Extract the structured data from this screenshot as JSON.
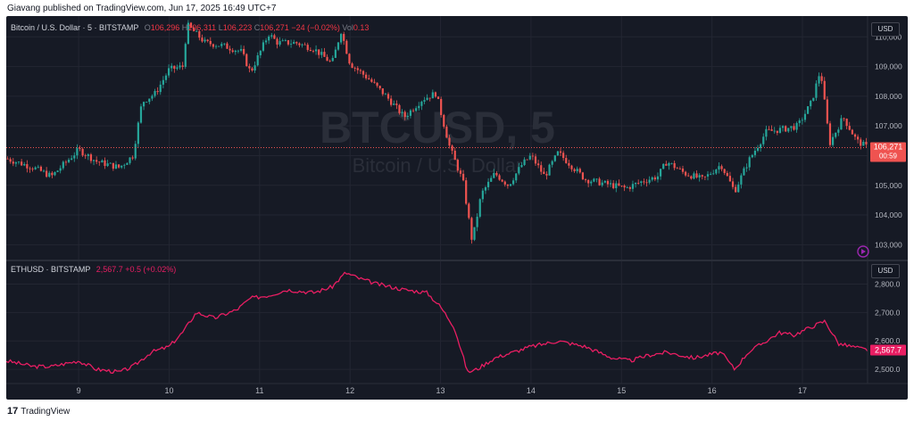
{
  "header": {
    "text": "Giavang published on TradingView.com, Jun 17, 2025 16:49 UTC+7"
  },
  "footer": {
    "logo_text": "17",
    "brand": "TradingView"
  },
  "colors": {
    "background": "#161a25",
    "grid": "#232632",
    "up": "#26a69a",
    "down": "#ef5350",
    "eth_line": "#e91e63",
    "text": "#b2b5be"
  },
  "chart_data": [
    {
      "type": "candlestick",
      "symbol_label": "Bitcoin / U.S. Dollar · 5 · BITSTAMP",
      "ohlc": {
        "o_label": "O",
        "o": "106,296",
        "h_label": "H",
        "h": "106,311",
        "l_label": "L",
        "l": "106,223",
        "c_label": "C",
        "c": "106,271",
        "change": "−24 (−0.02%)",
        "vol_label": "Vol",
        "vol": "0.13"
      },
      "watermark": "BTCUSD, 5",
      "watermark_sub": "Bitcoin / U.S. Dollar",
      "currency": "USD",
      "last_price": "106,271",
      "countdown": "00:59",
      "ylim": [
        102500,
        110700
      ],
      "y_ticks": [
        "103,000",
        "104,000",
        "105,000",
        "106,000",
        "107,000",
        "108,000",
        "109,000",
        "110,000"
      ],
      "x_ticks": [
        "9",
        "10",
        "11",
        "12",
        "13",
        "14",
        "15",
        "16",
        "17"
      ],
      "x_tick_positions": [
        9,
        10,
        11,
        12,
        13,
        14,
        15,
        16,
        17
      ],
      "xlim": [
        8.2,
        17.72
      ],
      "trend_x": [
        8.2,
        8.5,
        8.7,
        8.9,
        9.0,
        9.2,
        9.45,
        9.6,
        9.7,
        9.85,
        10.0,
        10.15,
        10.2,
        10.4,
        10.6,
        10.8,
        10.9,
        11.1,
        11.2,
        11.4,
        11.6,
        11.8,
        11.9,
        12.0,
        12.2,
        12.4,
        12.6,
        12.8,
        12.95,
        13.1,
        13.25,
        13.35,
        13.45,
        13.6,
        13.75,
        13.9,
        14.0,
        14.15,
        14.3,
        14.6,
        14.9,
        15.05,
        15.2,
        15.4,
        15.5,
        15.7,
        15.9,
        16.1,
        16.25,
        16.4,
        16.6,
        16.8,
        16.95,
        17.1,
        17.2,
        17.3,
        17.45,
        17.6,
        17.72
      ],
      "trend_y": [
        105900,
        105600,
        105300,
        105900,
        106200,
        105800,
        105600,
        106000,
        107800,
        108100,
        108900,
        109000,
        110400,
        109800,
        109700,
        109500,
        108800,
        110100,
        109800,
        109800,
        109600,
        109100,
        110200,
        109100,
        108600,
        108000,
        107300,
        107900,
        108100,
        106300,
        105100,
        103100,
        104700,
        105400,
        105000,
        105700,
        106000,
        105300,
        106100,
        105200,
        105000,
        104900,
        105100,
        105300,
        105800,
        105400,
        105200,
        105700,
        104800,
        105800,
        106800,
        106900,
        107000,
        107800,
        108900,
        106400,
        107300,
        106500,
        106270
      ]
    },
    {
      "type": "line",
      "symbol_label": "ETHUSD · BITSTAMP",
      "last_label": "2,567.7",
      "change": "+0.5 (+0.02%)",
      "currency": "USD",
      "last_price": "2,567.7",
      "ylim": [
        2450,
        2880
      ],
      "y_ticks": [
        "2,500.0",
        "2,600.0",
        "2,700.0",
        "2,800.0"
      ],
      "x": [
        8.2,
        8.5,
        8.7,
        9.0,
        9.2,
        9.45,
        9.6,
        9.8,
        10.0,
        10.15,
        10.3,
        10.5,
        10.75,
        10.9,
        11.1,
        11.3,
        11.6,
        11.8,
        11.95,
        12.1,
        12.3,
        12.6,
        12.85,
        13.0,
        13.15,
        13.3,
        13.4,
        13.6,
        13.8,
        14.0,
        14.3,
        14.6,
        14.9,
        15.1,
        15.3,
        15.5,
        15.8,
        16.1,
        16.25,
        16.4,
        16.6,
        16.75,
        16.9,
        17.1,
        17.25,
        17.4,
        17.55,
        17.72
      ],
      "y": [
        2530,
        2510,
        2510,
        2530,
        2500,
        2490,
        2510,
        2560,
        2580,
        2630,
        2700,
        2680,
        2710,
        2750,
        2760,
        2780,
        2770,
        2790,
        2840,
        2820,
        2800,
        2780,
        2770,
        2720,
        2650,
        2490,
        2500,
        2540,
        2560,
        2580,
        2600,
        2580,
        2540,
        2530,
        2550,
        2560,
        2540,
        2560,
        2500,
        2560,
        2600,
        2630,
        2620,
        2650,
        2670,
        2590,
        2580,
        2568
      ]
    }
  ]
}
